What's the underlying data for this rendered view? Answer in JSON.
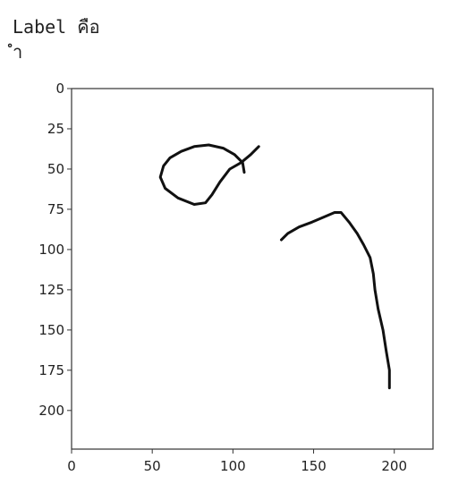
{
  "output": {
    "label_line": "Label คือ",
    "label_value": "ำ"
  },
  "chart_data": {
    "type": "image",
    "title": "",
    "xlabel": "",
    "ylabel": "",
    "xlim": [
      0,
      224
    ],
    "ylim": [
      224,
      0
    ],
    "y_inverted": true,
    "grid": false,
    "xticks": [
      0,
      50,
      100,
      150,
      200
    ],
    "yticks": [
      0,
      25,
      50,
      75,
      100,
      125,
      150,
      175,
      200
    ],
    "stroke_color": "#111111",
    "strokes": [
      {
        "points": [
          [
            107,
            52
          ],
          [
            106,
            46
          ],
          [
            101,
            41
          ],
          [
            94,
            37
          ],
          [
            85,
            35
          ],
          [
            76,
            36
          ],
          [
            68,
            39
          ],
          [
            61,
            43
          ],
          [
            57,
            48
          ],
          [
            55,
            55
          ],
          [
            58,
            62
          ],
          [
            66,
            68
          ],
          [
            76,
            72
          ],
          [
            83,
            71
          ],
          [
            87,
            66
          ],
          [
            92,
            58
          ],
          [
            98,
            50
          ],
          [
            105,
            46
          ],
          [
            111,
            41
          ],
          [
            116,
            36
          ]
        ]
      },
      {
        "points": [
          [
            130,
            94
          ],
          [
            134,
            90
          ],
          [
            141,
            86
          ],
          [
            149,
            83
          ],
          [
            156,
            80
          ],
          [
            163,
            77
          ],
          [
            167,
            77
          ],
          [
            172,
            83
          ],
          [
            177,
            90
          ],
          [
            181,
            97
          ],
          [
            185,
            105
          ],
          [
            187,
            115
          ],
          [
            188,
            125
          ],
          [
            190,
            137
          ],
          [
            193,
            150
          ],
          [
            195,
            163
          ],
          [
            197,
            175
          ],
          [
            197,
            186
          ]
        ]
      }
    ]
  }
}
